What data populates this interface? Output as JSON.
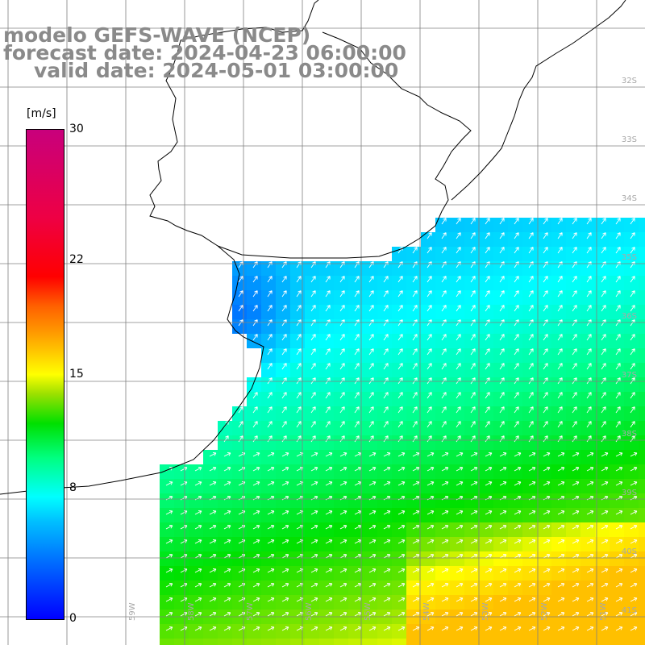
{
  "title": {
    "line1": "modelo GEFS-WAVE (NCEP)",
    "line2": "forecast date: 2024-04-23 06:00:00",
    "line3": "valid date: 2024-05-01 03:00:00"
  },
  "colorbar": {
    "unit": "[m/s]",
    "ticks": [
      "30",
      "22",
      "15",
      "8",
      "0"
    ],
    "tick_values": [
      30,
      22,
      15,
      8,
      0
    ],
    "range": [
      0,
      30
    ]
  },
  "grid": {
    "lat_labels": [
      "32S",
      "33S",
      "34S",
      "35S",
      "36S",
      "37S",
      "38S",
      "39S",
      "40S",
      "41S"
    ],
    "lon_labels": [
      "59W",
      "58W",
      "57W",
      "56W",
      "55W",
      "54W",
      "53W",
      "52W",
      "51W"
    ]
  },
  "colors": {
    "land": "#ffffff",
    "grid": "#808080",
    "coast": "#000000",
    "arrows": "#ffffff",
    "title": "#8a8a8a"
  }
}
